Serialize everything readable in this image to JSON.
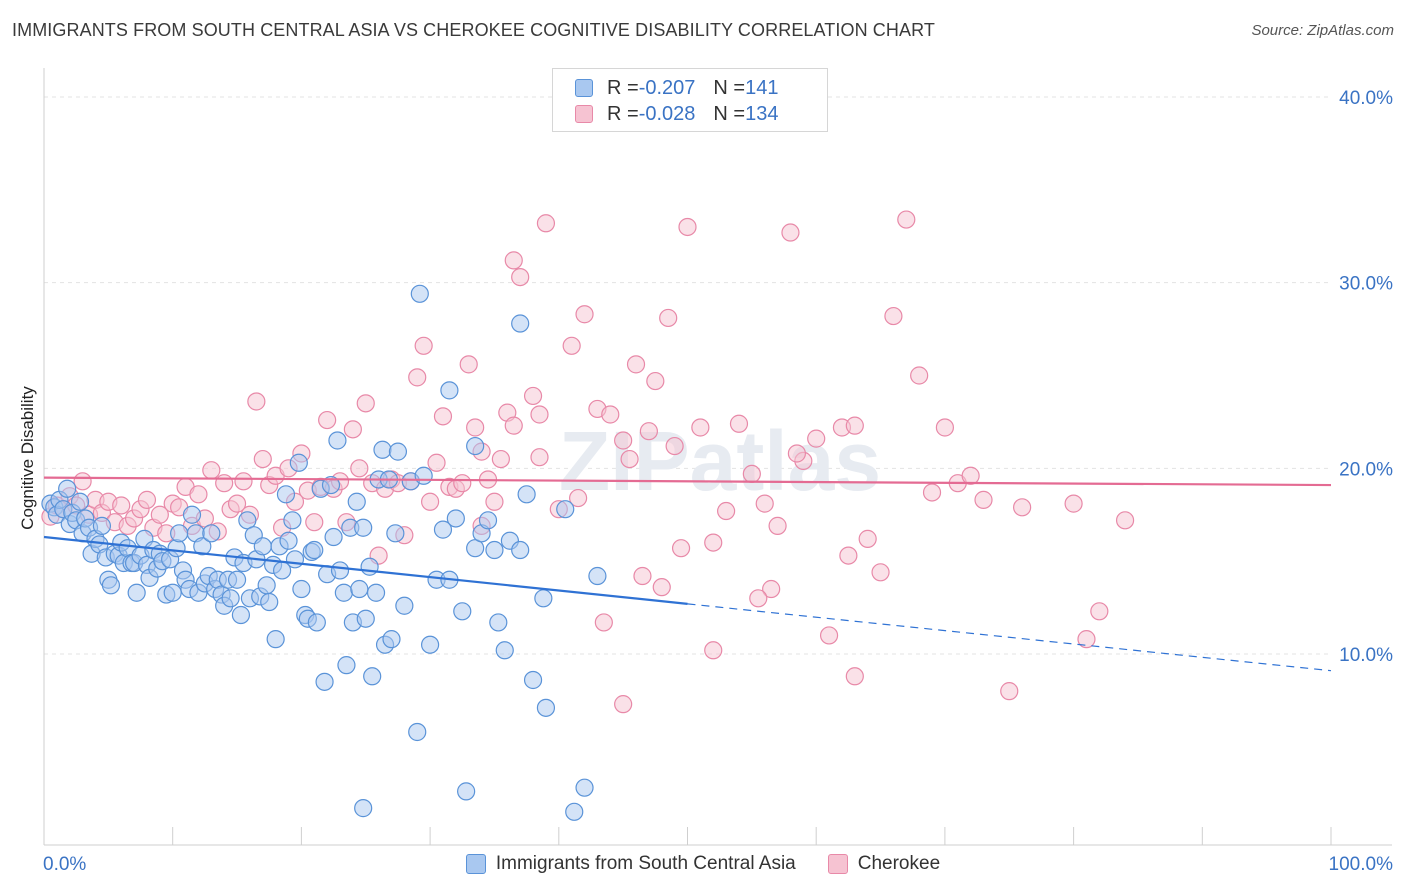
{
  "header": {
    "title": "IMMIGRANTS FROM SOUTH CENTRAL ASIA VS CHEROKEE COGNITIVE DISABILITY CORRELATION CHART",
    "source": "Source: ZipAtlas.com"
  },
  "stats": [
    {
      "r_label": "R = ",
      "r_value": "-0.207",
      "n_label": "N = ",
      "n_value": "141"
    },
    {
      "r_label": "R = ",
      "r_value": "-0.028",
      "n_label": "N = ",
      "n_value": "134"
    }
  ],
  "legend": {
    "series1": "Immigrants from South Central Asia",
    "series2": "Cherokee"
  },
  "colors": {
    "series1_fill": "#a9c8f0",
    "series1_stroke": "#5a93d8",
    "series1_line": "#2f72d4",
    "series2_fill": "#f6c3d2",
    "series2_stroke": "#e889a8",
    "series2_line": "#e46b93",
    "axis_text": "#3a73c4"
  },
  "watermark": "ZIPatlas",
  "chart_data": {
    "type": "scatter",
    "title": "IMMIGRANTS FROM SOUTH CENTRAL ASIA VS CHEROKEE COGNITIVE DISABILITY CORRELATION CHART",
    "xlabel": "",
    "ylabel": "Cognitive Disability",
    "xlim": [
      0,
      100
    ],
    "ylim": [
      0,
      42
    ],
    "x_tick_labels": [
      "0.0%",
      "100.0%"
    ],
    "y_ticks": [
      10,
      20,
      30,
      40
    ],
    "y_tick_labels": [
      "10.0%",
      "20.0%",
      "30.0%",
      "40.0%"
    ],
    "grid": true,
    "series": [
      {
        "name": "Immigrants from South Central Asia",
        "r": -0.207,
        "n": 141,
        "trend": {
          "x0": 0,
          "y0": 16.3,
          "x1": 50,
          "y1": 12.7,
          "dashed_to_x": 100,
          "dashed_to_y": 9.1
        },
        "points": [
          [
            0.5,
            18.1
          ],
          [
            0.8,
            17.9
          ],
          [
            1.0,
            17.5
          ],
          [
            1.2,
            18.3
          ],
          [
            1.5,
            17.8
          ],
          [
            1.8,
            18.9
          ],
          [
            2.0,
            17.0
          ],
          [
            2.2,
            17.6
          ],
          [
            2.5,
            17.2
          ],
          [
            2.8,
            18.2
          ],
          [
            3.0,
            16.5
          ],
          [
            3.2,
            17.3
          ],
          [
            3.5,
            16.8
          ],
          [
            3.7,
            15.4
          ],
          [
            4.0,
            16.2
          ],
          [
            4.3,
            15.9
          ],
          [
            4.5,
            16.9
          ],
          [
            4.8,
            15.2
          ],
          [
            5.0,
            14.0
          ],
          [
            5.2,
            13.7
          ],
          [
            5.5,
            15.4
          ],
          [
            5.8,
            15.3
          ],
          [
            6.0,
            16.0
          ],
          [
            6.2,
            14.9
          ],
          [
            6.5,
            15.7
          ],
          [
            6.8,
            14.9
          ],
          [
            7.0,
            14.9
          ],
          [
            7.2,
            13.3
          ],
          [
            7.5,
            15.3
          ],
          [
            7.8,
            16.2
          ],
          [
            8.0,
            14.8
          ],
          [
            8.2,
            14.1
          ],
          [
            8.5,
            15.6
          ],
          [
            8.8,
            14.6
          ],
          [
            9.0,
            15.4
          ],
          [
            9.2,
            15.0
          ],
          [
            9.5,
            13.2
          ],
          [
            9.8,
            15.1
          ],
          [
            10.0,
            13.3
          ],
          [
            10.3,
            15.7
          ],
          [
            10.5,
            16.5
          ],
          [
            10.8,
            14.5
          ],
          [
            11.0,
            14.0
          ],
          [
            11.3,
            13.5
          ],
          [
            11.5,
            17.5
          ],
          [
            11.8,
            16.5
          ],
          [
            12.0,
            13.3
          ],
          [
            12.3,
            15.8
          ],
          [
            12.5,
            13.8
          ],
          [
            12.8,
            14.2
          ],
          [
            13.0,
            16.5
          ],
          [
            13.3,
            13.5
          ],
          [
            13.5,
            14.0
          ],
          [
            13.8,
            13.2
          ],
          [
            14.0,
            12.6
          ],
          [
            14.3,
            14.0
          ],
          [
            14.5,
            13.0
          ],
          [
            14.8,
            15.2
          ],
          [
            15.0,
            14.0
          ],
          [
            15.3,
            12.1
          ],
          [
            15.5,
            14.9
          ],
          [
            15.8,
            17.2
          ],
          [
            16.0,
            13.0
          ],
          [
            16.3,
            16.4
          ],
          [
            16.5,
            15.1
          ],
          [
            16.8,
            13.1
          ],
          [
            17.0,
            15.8
          ],
          [
            17.3,
            13.7
          ],
          [
            17.5,
            12.8
          ],
          [
            17.8,
            14.8
          ],
          [
            18.0,
            10.8
          ],
          [
            18.3,
            15.8
          ],
          [
            18.5,
            14.5
          ],
          [
            18.8,
            18.6
          ],
          [
            19.0,
            16.1
          ],
          [
            19.3,
            17.2
          ],
          [
            19.5,
            15.1
          ],
          [
            19.8,
            20.3
          ],
          [
            20.0,
            13.5
          ],
          [
            20.3,
            12.1
          ],
          [
            20.5,
            11.9
          ],
          [
            20.8,
            15.5
          ],
          [
            21.0,
            15.6
          ],
          [
            21.2,
            11.7
          ],
          [
            21.5,
            18.9
          ],
          [
            21.8,
            8.5
          ],
          [
            22.0,
            14.3
          ],
          [
            22.3,
            19.1
          ],
          [
            22.5,
            16.3
          ],
          [
            22.8,
            21.5
          ],
          [
            23.0,
            14.5
          ],
          [
            23.3,
            13.3
          ],
          [
            23.5,
            9.4
          ],
          [
            23.8,
            16.8
          ],
          [
            24.0,
            11.7
          ],
          [
            24.3,
            18.2
          ],
          [
            24.5,
            13.5
          ],
          [
            24.8,
            16.8
          ],
          [
            25.0,
            11.9
          ],
          [
            25.3,
            14.7
          ],
          [
            25.5,
            8.8
          ],
          [
            25.8,
            13.3
          ],
          [
            26.0,
            19.4
          ],
          [
            26.3,
            21.0
          ],
          [
            26.5,
            10.5
          ],
          [
            26.8,
            19.4
          ],
          [
            27.0,
            10.8
          ],
          [
            27.3,
            16.5
          ],
          [
            27.5,
            20.9
          ],
          [
            28.0,
            12.6
          ],
          [
            28.5,
            19.3
          ],
          [
            29.0,
            5.8
          ],
          [
            29.5,
            19.6
          ],
          [
            30.0,
            10.5
          ],
          [
            30.5,
            14.0
          ],
          [
            31.0,
            16.7
          ],
          [
            31.5,
            14.0
          ],
          [
            32.0,
            17.3
          ],
          [
            32.5,
            12.3
          ],
          [
            33.5,
            15.7
          ],
          [
            34.0,
            16.5
          ],
          [
            34.5,
            17.2
          ],
          [
            35.0,
            15.6
          ],
          [
            35.3,
            11.7
          ],
          [
            35.8,
            10.2
          ],
          [
            36.2,
            16.1
          ],
          [
            37.0,
            15.6
          ],
          [
            37.5,
            18.6
          ],
          [
            38.0,
            8.6
          ],
          [
            39.0,
            7.1
          ],
          [
            42.0,
            2.8
          ],
          [
            41.2,
            1.5
          ],
          [
            32.8,
            2.6
          ],
          [
            24.8,
            1.7
          ],
          [
            31.5,
            24.2
          ],
          [
            37.0,
            27.8
          ],
          [
            29.2,
            29.4
          ],
          [
            33.5,
            21.2
          ],
          [
            40.5,
            17.8
          ],
          [
            43.0,
            14.2
          ],
          [
            38.8,
            13.0
          ]
        ]
      },
      {
        "name": "Cherokee",
        "r": -0.028,
        "n": 134,
        "trend": {
          "x0": 0,
          "y0": 19.5,
          "x1": 100,
          "y1": 19.1
        },
        "points": [
          [
            0.5,
            17.4
          ],
          [
            1.0,
            18.0
          ],
          [
            1.5,
            17.8
          ],
          [
            2.0,
            18.5
          ],
          [
            2.5,
            18.0
          ],
          [
            3.0,
            19.3
          ],
          [
            3.5,
            17.5
          ],
          [
            4.0,
            18.3
          ],
          [
            4.5,
            17.6
          ],
          [
            5.0,
            18.2
          ],
          [
            5.5,
            17.1
          ],
          [
            6.0,
            18.0
          ],
          [
            6.5,
            16.9
          ],
          [
            7.0,
            17.3
          ],
          [
            7.5,
            17.8
          ],
          [
            8.0,
            18.3
          ],
          [
            8.5,
            16.8
          ],
          [
            9.0,
            17.5
          ],
          [
            9.5,
            16.5
          ],
          [
            10.0,
            18.1
          ],
          [
            10.5,
            17.9
          ],
          [
            11.0,
            19.0
          ],
          [
            11.5,
            16.9
          ],
          [
            12.0,
            18.6
          ],
          [
            12.5,
            17.3
          ],
          [
            13.0,
            19.9
          ],
          [
            13.5,
            16.6
          ],
          [
            14.0,
            19.2
          ],
          [
            14.5,
            17.8
          ],
          [
            15.0,
            18.1
          ],
          [
            15.5,
            19.3
          ],
          [
            16.0,
            17.5
          ],
          [
            16.5,
            23.6
          ],
          [
            17.0,
            20.5
          ],
          [
            17.5,
            19.1
          ],
          [
            18.0,
            19.6
          ],
          [
            18.5,
            16.8
          ],
          [
            19.0,
            20.0
          ],
          [
            19.5,
            18.2
          ],
          [
            20.0,
            20.8
          ],
          [
            20.5,
            18.8
          ],
          [
            21.0,
            17.1
          ],
          [
            21.5,
            19.0
          ],
          [
            22.0,
            22.6
          ],
          [
            22.5,
            18.9
          ],
          [
            23.0,
            19.3
          ],
          [
            23.5,
            17.1
          ],
          [
            24.0,
            22.1
          ],
          [
            24.5,
            20.0
          ],
          [
            25.0,
            23.5
          ],
          [
            25.5,
            19.2
          ],
          [
            26.0,
            15.3
          ],
          [
            26.5,
            18.9
          ],
          [
            27.0,
            19.4
          ],
          [
            27.5,
            19.2
          ],
          [
            28.0,
            16.4
          ],
          [
            28.5,
            19.3
          ],
          [
            29.0,
            24.9
          ],
          [
            29.5,
            26.6
          ],
          [
            30.0,
            18.2
          ],
          [
            30.5,
            20.3
          ],
          [
            31.0,
            22.8
          ],
          [
            31.5,
            19.0
          ],
          [
            32.0,
            18.9
          ],
          [
            32.5,
            19.2
          ],
          [
            33.0,
            25.6
          ],
          [
            33.5,
            22.2
          ],
          [
            34.0,
            20.9
          ],
          [
            34.5,
            19.4
          ],
          [
            35.0,
            18.2
          ],
          [
            35.5,
            20.5
          ],
          [
            36.0,
            23.0
          ],
          [
            36.5,
            22.3
          ],
          [
            37.0,
            30.3
          ],
          [
            38.0,
            23.9
          ],
          [
            38.5,
            22.9
          ],
          [
            39.0,
            33.2
          ],
          [
            40.0,
            17.8
          ],
          [
            41.0,
            26.6
          ],
          [
            41.5,
            18.4
          ],
          [
            42.0,
            28.3
          ],
          [
            43.0,
            23.2
          ],
          [
            43.5,
            11.7
          ],
          [
            44.0,
            22.9
          ],
          [
            45.0,
            21.5
          ],
          [
            45.5,
            20.5
          ],
          [
            46.0,
            25.6
          ],
          [
            46.5,
            14.2
          ],
          [
            47.0,
            22.0
          ],
          [
            48.0,
            13.6
          ],
          [
            48.5,
            28.1
          ],
          [
            49.0,
            21.2
          ],
          [
            49.5,
            15.7
          ],
          [
            50.0,
            33.0
          ],
          [
            51.0,
            22.2
          ],
          [
            52.0,
            16.0
          ],
          [
            53.0,
            17.7
          ],
          [
            54.0,
            22.4
          ],
          [
            55.0,
            19.7
          ],
          [
            56.0,
            18.1
          ],
          [
            56.5,
            13.5
          ],
          [
            57.0,
            16.9
          ],
          [
            58.0,
            32.7
          ],
          [
            59.0,
            20.4
          ],
          [
            60.0,
            21.6
          ],
          [
            61.0,
            11.0
          ],
          [
            62.0,
            22.2
          ],
          [
            62.5,
            15.3
          ],
          [
            63.0,
            22.3
          ],
          [
            64.0,
            16.2
          ],
          [
            65.0,
            14.4
          ],
          [
            66.0,
            28.2
          ],
          [
            67.0,
            33.4
          ],
          [
            68.0,
            25.0
          ],
          [
            69.0,
            18.7
          ],
          [
            70.0,
            22.2
          ],
          [
            71.0,
            19.2
          ],
          [
            72.0,
            19.6
          ],
          [
            73.0,
            18.3
          ],
          [
            75.0,
            8.0
          ],
          [
            76.0,
            17.9
          ],
          [
            80.0,
            18.1
          ],
          [
            81.0,
            10.8
          ],
          [
            82.0,
            12.3
          ],
          [
            84.0,
            17.2
          ],
          [
            45.0,
            7.3
          ],
          [
            52.0,
            10.2
          ],
          [
            63.0,
            8.8
          ],
          [
            47.5,
            24.7
          ],
          [
            38.5,
            20.6
          ],
          [
            34.0,
            16.9
          ],
          [
            36.5,
            31.2
          ],
          [
            58.5,
            20.8
          ],
          [
            55.5,
            13.0
          ]
        ]
      }
    ]
  }
}
